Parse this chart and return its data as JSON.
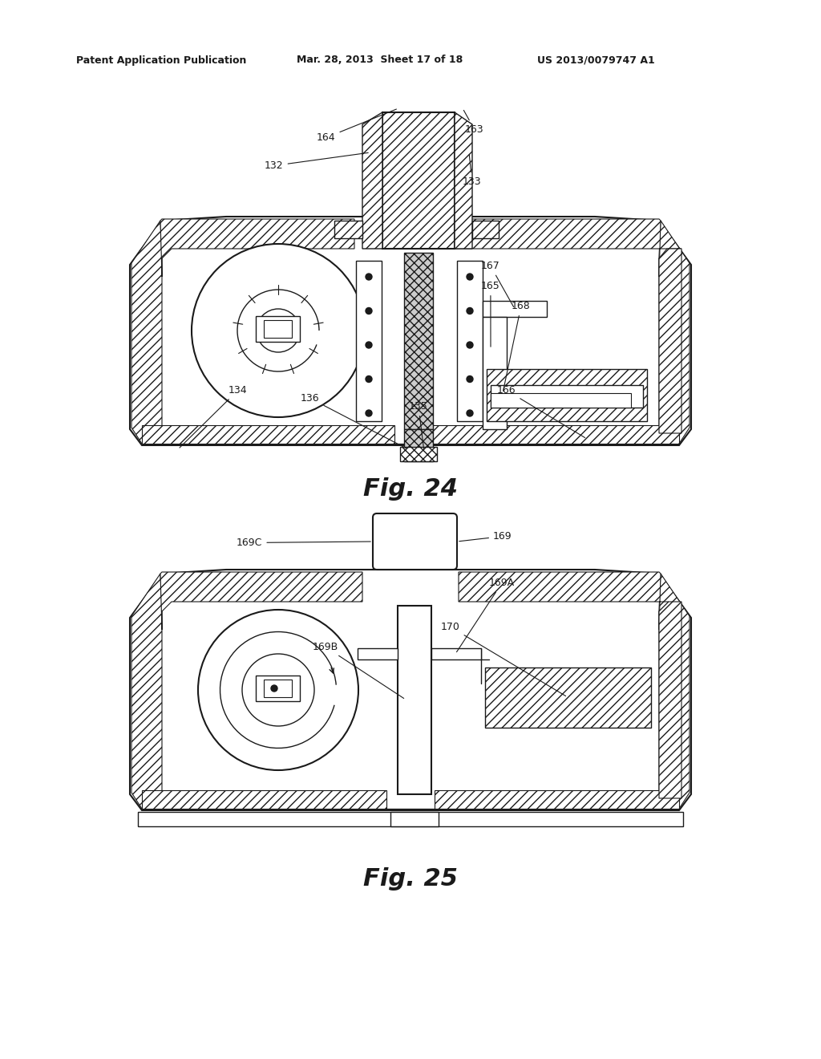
{
  "header_left": "Patent Application Publication",
  "header_mid": "Mar. 28, 2013  Sheet 17 of 18",
  "header_right": "US 2013/0079747 A1",
  "fig24_label": "Fig. 24",
  "fig25_label": "Fig. 25",
  "bg": "#ffffff",
  "lc": "#1a1a1a",
  "gray": "#888888",
  "lightgray": "#cccccc"
}
